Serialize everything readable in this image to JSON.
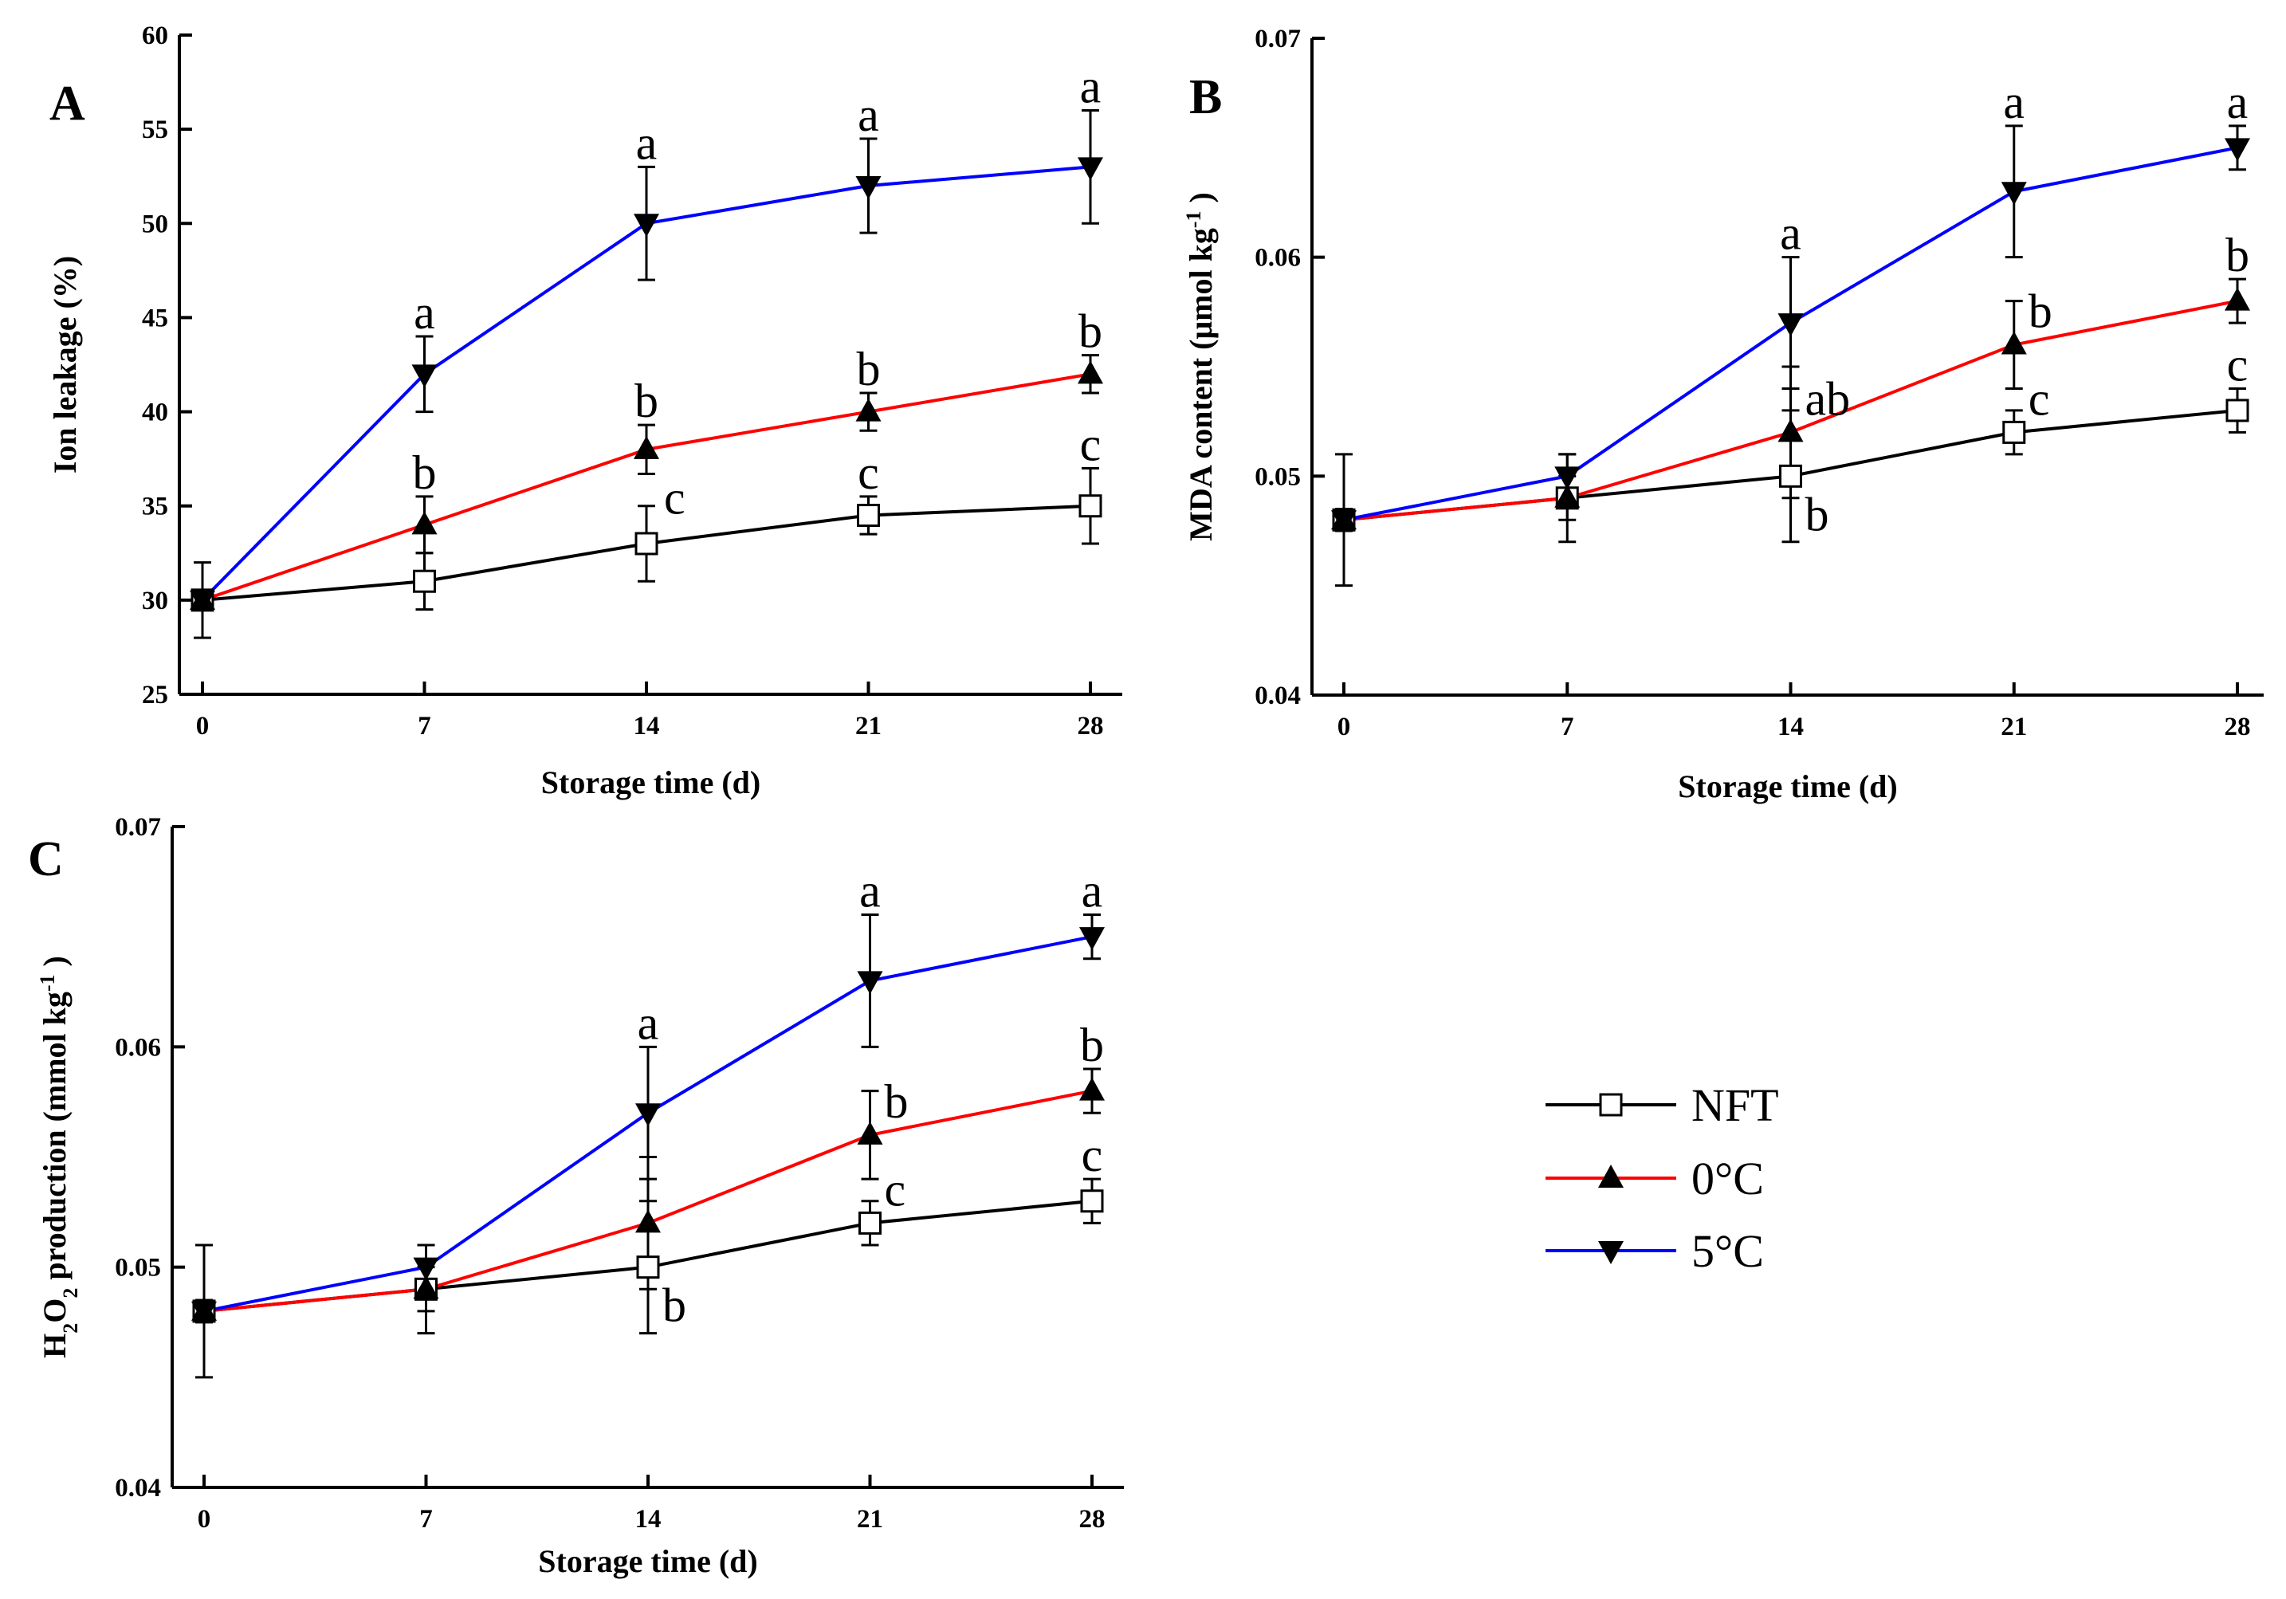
{
  "legend": [
    {
      "name": "NFT",
      "color": "#000000",
      "marker": "open-square"
    },
    {
      "name": "0°C",
      "color": "#ff0000",
      "marker": "triangle-up"
    },
    {
      "name": "5°C",
      "color": "#0000ff",
      "marker": "triangle-down"
    }
  ],
  "chart_data": [
    {
      "type": "line",
      "panel_label": "A",
      "xlabel": "Storage time (d)",
      "ylabel": "Ion leakage (%)",
      "x": [
        0,
        7,
        14,
        21,
        28
      ],
      "xticks": [
        "0",
        "7",
        "14",
        "21",
        "28"
      ],
      "ylim": [
        25,
        60
      ],
      "yticks": [
        "25",
        "30",
        "35",
        "40",
        "45",
        "50",
        "55",
        "60"
      ],
      "ytick_values": [
        25,
        30,
        35,
        40,
        45,
        50,
        55,
        60
      ],
      "series": [
        {
          "name": "NFT",
          "values": [
            30,
            31,
            33,
            34.5,
            35
          ],
          "errors": [
            2,
            1.5,
            2,
            1,
            2
          ]
        },
        {
          "name": "0°C",
          "values": [
            30,
            34,
            38,
            40,
            42
          ],
          "errors": [
            0.5,
            1.5,
            1.3,
            1,
            1
          ]
        },
        {
          "name": "5°C",
          "values": [
            30,
            42,
            50,
            52,
            53
          ],
          "errors": [
            0.5,
            2,
            3,
            2.5,
            3
          ]
        }
      ],
      "letters": [
        {
          "series": 2,
          "x": 7,
          "text": "a",
          "pos": "above"
        },
        {
          "series": 1,
          "x": 7,
          "text": "b",
          "pos": "above"
        },
        {
          "series": 2,
          "x": 14,
          "text": "a",
          "pos": "above"
        },
        {
          "series": 1,
          "x": 14,
          "text": "b",
          "pos": "above"
        },
        {
          "series": 0,
          "x": 14,
          "text": "c",
          "pos": "right"
        },
        {
          "series": 2,
          "x": 21,
          "text": "a",
          "pos": "above"
        },
        {
          "series": 1,
          "x": 21,
          "text": "b",
          "pos": "above"
        },
        {
          "series": 0,
          "x": 21,
          "text": "c",
          "pos": "above"
        },
        {
          "series": 2,
          "x": 28,
          "text": "a",
          "pos": "above"
        },
        {
          "series": 1,
          "x": 28,
          "text": "b",
          "pos": "above"
        },
        {
          "series": 0,
          "x": 28,
          "text": "c",
          "pos": "above"
        }
      ]
    },
    {
      "type": "line",
      "panel_label": "B",
      "xlabel": "Storage time (d)",
      "ylabel": "MDA content (μmol kg",
      "ylabel_sup": "-1",
      "ylabel_end": ")",
      "x": [
        0,
        7,
        14,
        21,
        28
      ],
      "xticks": [
        "0",
        "7",
        "14",
        "21",
        "28"
      ],
      "ylim": [
        0.04,
        0.07
      ],
      "yticks": [
        "0.04",
        "0.05",
        "0.06",
        "0.07"
      ],
      "ytick_values": [
        0.04,
        0.05,
        0.06,
        0.07
      ],
      "series": [
        {
          "name": "NFT",
          "values": [
            0.048,
            0.049,
            0.05,
            0.052,
            0.053
          ],
          "errors": [
            0.003,
            0.002,
            0.003,
            0.001,
            0.001
          ]
        },
        {
          "name": "0°C",
          "values": [
            0.048,
            0.049,
            0.052,
            0.056,
            0.058
          ],
          "errors": [
            0.0005,
            0.001,
            0.003,
            0.002,
            0.001
          ]
        },
        {
          "name": "5°C",
          "values": [
            0.048,
            0.05,
            0.057,
            0.063,
            0.065
          ],
          "errors": [
            0.0005,
            0.001,
            0.003,
            0.003,
            0.001
          ]
        }
      ],
      "letters": [
        {
          "series": 2,
          "x": 14,
          "text": "a",
          "pos": "above"
        },
        {
          "series": 1,
          "x": 14,
          "text": "ab",
          "pos": "right-up"
        },
        {
          "series": 0,
          "x": 14,
          "text": "b",
          "pos": "right-down"
        },
        {
          "series": 2,
          "x": 21,
          "text": "a",
          "pos": "above"
        },
        {
          "series": 1,
          "x": 21,
          "text": "b",
          "pos": "right-up"
        },
        {
          "series": 0,
          "x": 21,
          "text": "c",
          "pos": "right-up"
        },
        {
          "series": 2,
          "x": 28,
          "text": "a",
          "pos": "above"
        },
        {
          "series": 1,
          "x": 28,
          "text": "b",
          "pos": "above"
        },
        {
          "series": 0,
          "x": 28,
          "text": "c",
          "pos": "above"
        }
      ]
    },
    {
      "type": "line",
      "panel_label": "C",
      "xlabel": "Storage time (d)",
      "ylabel": "H2O2 production (mmol kg",
      "ylabel_sup": "-1",
      "ylabel_end": ")",
      "x": [
        0,
        7,
        14,
        21,
        28
      ],
      "xticks": [
        "0",
        "7",
        "14",
        "21",
        "28"
      ],
      "ylim": [
        0.04,
        0.07
      ],
      "yticks": [
        "0.04",
        "0.05",
        "0.06",
        "0.07"
      ],
      "ytick_values": [
        0.04,
        0.05,
        0.06,
        0.07
      ],
      "series": [
        {
          "name": "NFT",
          "values": [
            0.048,
            0.049,
            0.05,
            0.052,
            0.053
          ],
          "errors": [
            0.003,
            0.002,
            0.003,
            0.001,
            0.001
          ]
        },
        {
          "name": "0°C",
          "values": [
            0.048,
            0.049,
            0.052,
            0.056,
            0.058
          ],
          "errors": [
            0.0005,
            0.001,
            0.003,
            0.002,
            0.001
          ]
        },
        {
          "name": "5°C",
          "values": [
            0.048,
            0.05,
            0.057,
            0.063,
            0.065
          ],
          "errors": [
            0.0005,
            0.001,
            0.003,
            0.003,
            0.001
          ]
        }
      ],
      "letters": [
        {
          "series": 2,
          "x": 14,
          "text": "a",
          "pos": "above"
        },
        {
          "series": 0,
          "x": 14,
          "text": "b",
          "pos": "right-down"
        },
        {
          "series": 2,
          "x": 21,
          "text": "a",
          "pos": "above"
        },
        {
          "series": 1,
          "x": 21,
          "text": "b",
          "pos": "right-up"
        },
        {
          "series": 0,
          "x": 21,
          "text": "c",
          "pos": "right-up"
        },
        {
          "series": 2,
          "x": 28,
          "text": "a",
          "pos": "above"
        },
        {
          "series": 1,
          "x": 28,
          "text": "b",
          "pos": "above"
        },
        {
          "series": 0,
          "x": 28,
          "text": "c",
          "pos": "above"
        }
      ]
    }
  ]
}
